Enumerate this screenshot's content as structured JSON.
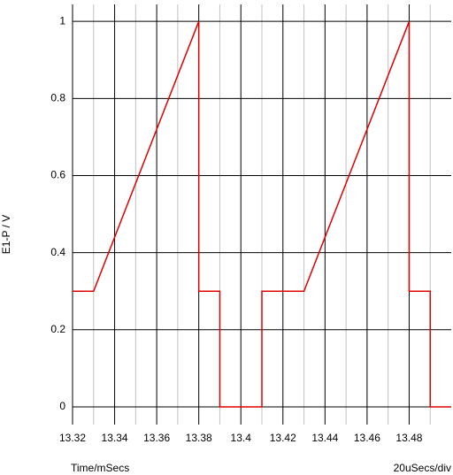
{
  "chart_data": {
    "type": "line",
    "ylabel": "E1-P / V",
    "xlabel": "Time/mSecs",
    "scale_note": "20uSecs/div",
    "x": [
      13.32,
      13.33,
      13.38,
      13.38,
      13.39,
      13.39,
      13.41,
      13.41,
      13.43,
      13.48,
      13.48,
      13.49,
      13.49,
      13.5
    ],
    "series": [
      {
        "name": "E1-P",
        "color": "#e00000",
        "values": [
          0.3,
          0.3,
          1.0,
          0.3,
          0.3,
          0,
          0,
          0.3,
          0.3,
          1.0,
          0.3,
          0.3,
          0,
          0
        ]
      }
    ],
    "xlim": [
      13.32,
      13.5
    ],
    "ylim": [
      -0.046,
      1.044
    ],
    "xticks": [
      13.32,
      13.34,
      13.36,
      13.38,
      13.4,
      13.42,
      13.44,
      13.46,
      13.48
    ],
    "xminorticks": [
      13.33,
      13.35,
      13.37,
      13.39,
      13.41,
      13.43,
      13.45,
      13.47,
      13.49
    ],
    "yticks": [
      0,
      0.2,
      0.4,
      0.6,
      0.8,
      1
    ],
    "grid": true
  }
}
